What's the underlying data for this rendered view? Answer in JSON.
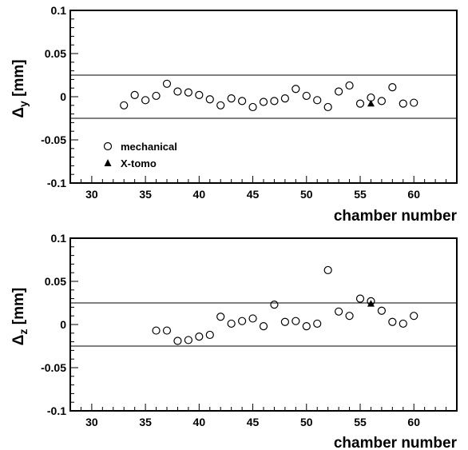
{
  "chart_data": [
    {
      "type": "scatter",
      "xlabel": "chamber number",
      "ylabel_main": "Δ",
      "ylabel_sub": "y",
      "ylabel_unit": "[mm]",
      "xlim": [
        28,
        64
      ],
      "ylim": [
        -0.1,
        0.1
      ],
      "xticks": [
        30,
        35,
        40,
        45,
        50,
        55,
        60
      ],
      "xtick_labels": [
        "30",
        "35",
        "40",
        "45",
        "50",
        "55",
        "60"
      ],
      "yticks": [
        0.1,
        0.05,
        0,
        -0.05,
        -0.1
      ],
      "ytick_labels": [
        "0.1",
        "0.05",
        "0",
        "-0.05",
        "-0.1"
      ],
      "reference_lines": [
        0.025,
        -0.025
      ],
      "legend": {
        "position": "bottom-left",
        "entries": [
          "mechanical",
          "X-tomo"
        ]
      },
      "series": [
        {
          "name": "mechanical",
          "marker": "open-circle",
          "x": [
            33,
            34,
            35,
            36,
            37,
            38,
            39,
            40,
            41,
            42,
            43,
            44,
            45,
            46,
            47,
            48,
            49,
            50,
            51,
            52,
            53,
            54,
            55,
            56,
            57,
            58,
            59,
            60
          ],
          "y": [
            -0.01,
            0.002,
            -0.004,
            0.001,
            0.015,
            0.006,
            0.005,
            0.002,
            -0.003,
            -0.01,
            -0.002,
            -0.005,
            -0.012,
            -0.006,
            -0.005,
            -0.002,
            0.009,
            0.001,
            -0.004,
            -0.012,
            0.006,
            0.013,
            -0.008,
            -0.001,
            -0.005,
            0.011,
            -0.008,
            -0.007
          ]
        },
        {
          "name": "X-tomo",
          "marker": "filled-triangle",
          "x": [
            56
          ],
          "y": [
            -0.008
          ]
        }
      ]
    },
    {
      "type": "scatter",
      "xlabel": "chamber number",
      "ylabel_main": "Δ",
      "ylabel_sub": "z",
      "ylabel_unit": "[mm]",
      "xlim": [
        28,
        64
      ],
      "ylim": [
        -0.1,
        0.1
      ],
      "xticks": [
        30,
        35,
        40,
        45,
        50,
        55,
        60
      ],
      "xtick_labels": [
        "30",
        "35",
        "40",
        "45",
        "50",
        "55",
        "60"
      ],
      "yticks": [
        0.1,
        0.05,
        0,
        -0.05,
        -0.1
      ],
      "ytick_labels": [
        "0.1",
        "0.05",
        "0",
        "-0.05",
        "-0.1"
      ],
      "reference_lines": [
        0.025,
        -0.025
      ],
      "series": [
        {
          "name": "mechanical",
          "marker": "open-circle",
          "x": [
            36,
            37,
            38,
            39,
            40,
            41,
            42,
            43,
            44,
            45,
            46,
            47,
            48,
            49,
            50,
            51,
            52,
            53,
            54,
            55,
            56,
            57,
            58,
            59,
            60
          ],
          "y": [
            -0.007,
            -0.007,
            -0.019,
            -0.018,
            -0.014,
            -0.012,
            0.009,
            0.001,
            0.004,
            0.007,
            -0.002,
            0.023,
            0.003,
            0.004,
            -0.002,
            0.001,
            0.063,
            0.015,
            0.01,
            0.03,
            0.027,
            0.016,
            0.003,
            0.001,
            0.01
          ]
        },
        {
          "name": "X-tomo",
          "marker": "filled-triangle",
          "x": [
            56
          ],
          "y": [
            0.024
          ]
        }
      ]
    }
  ]
}
